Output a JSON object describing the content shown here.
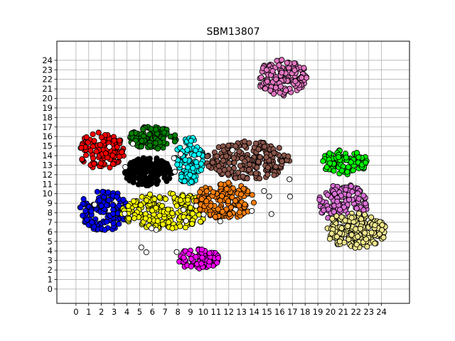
{
  "chart_data": {
    "type": "scatter",
    "title": "SBM13807",
    "xlabel": "",
    "ylabel": "",
    "xlim": [
      -1.5,
      26.2
    ],
    "ylim": [
      -1.5,
      26.0
    ],
    "xticks": [
      0,
      1,
      2,
      3,
      4,
      5,
      6,
      7,
      8,
      9,
      10,
      11,
      12,
      13,
      14,
      15,
      16,
      17,
      18,
      19,
      20,
      21,
      22,
      23,
      24
    ],
    "yticks": [
      0,
      1,
      2,
      3,
      4,
      5,
      6,
      7,
      8,
      9,
      10,
      11,
      12,
      13,
      14,
      15,
      16,
      17,
      18,
      19,
      20,
      21,
      22,
      23,
      24
    ],
    "grid": true,
    "legend": "none",
    "clusters": [
      {
        "color": "#ff0000",
        "cx": 2.0,
        "cy": 14.5,
        "rx": 1.8,
        "ry": 2.0,
        "n": 120
      },
      {
        "color": "#008000",
        "cx": 6.0,
        "cy": 15.9,
        "rx": 2.0,
        "ry": 1.2,
        "n": 110
      },
      {
        "color": "#00ffff",
        "cx": 8.9,
        "cy": 13.5,
        "rx": 1.1,
        "ry": 2.6,
        "n": 110
      },
      {
        "color": "#000000",
        "cx": 5.7,
        "cy": 12.3,
        "rx": 1.9,
        "ry": 1.5,
        "n": 170
      },
      {
        "color": "#0000ff",
        "cx": 2.2,
        "cy": 8.3,
        "rx": 1.9,
        "ry": 2.2,
        "n": 140
      },
      {
        "color": "#ffff00",
        "cx": 7.0,
        "cy": 8.2,
        "rx": 3.5,
        "ry": 2.0,
        "n": 230
      },
      {
        "color": "#ff7f0e",
        "cx": 11.7,
        "cy": 9.3,
        "rx": 2.3,
        "ry": 1.9,
        "n": 170
      },
      {
        "color": "#8c564b",
        "cx": 13.5,
        "cy": 13.5,
        "rx": 3.3,
        "ry": 2.0,
        "n": 210
      },
      {
        "color": "#e377c2",
        "cx": 16.2,
        "cy": 22.2,
        "rx": 2.0,
        "ry": 1.9,
        "n": 150
      },
      {
        "color": "#00ff00",
        "cx": 21.1,
        "cy": 13.3,
        "rx": 1.8,
        "ry": 1.3,
        "n": 100
      },
      {
        "color": "#da70d6",
        "cx": 21.0,
        "cy": 9.0,
        "rx": 2.0,
        "ry": 2.0,
        "n": 120
      },
      {
        "color": "#f0e68c",
        "cx": 22.0,
        "cy": 6.2,
        "rx": 2.4,
        "ry": 1.9,
        "n": 170
      },
      {
        "color": "#ff00ff",
        "cx": 9.6,
        "cy": 3.2,
        "rx": 1.7,
        "ry": 1.1,
        "n": 90
      },
      {
        "color": "#ffffff",
        "cx": 9.0,
        "cy": 10.0,
        "rx": 9.0,
        "ry": 7.0,
        "n": 25
      }
    ]
  }
}
